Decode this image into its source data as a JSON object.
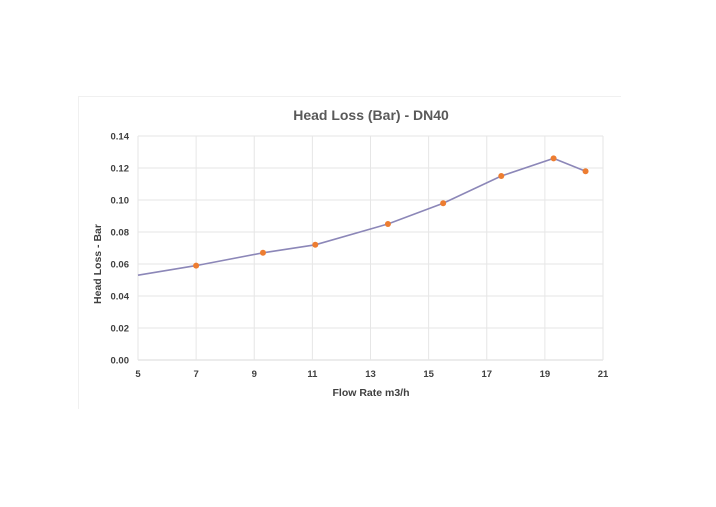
{
  "chart_data": {
    "type": "line",
    "title": "Head Loss  (Bar) - DN40",
    "xlabel": "Flow Rate m3/h",
    "ylabel": "Head Loss - Bar",
    "xlim": [
      5,
      21
    ],
    "ylim": [
      0,
      0.14
    ],
    "x_ticks": [
      5,
      7,
      9,
      11,
      13,
      15,
      17,
      19,
      21
    ],
    "y_ticks": [
      "0.00",
      "0.02",
      "0.04",
      "0.06",
      "0.08",
      "0.10",
      "0.12",
      "0.14"
    ],
    "grid": "vertical and horizontal",
    "legend": "none",
    "line_start": {
      "x": 5,
      "y": 0.053
    },
    "series": [
      {
        "x": [
          7,
          9.3,
          11.1,
          13.6,
          15.5,
          17.5,
          19.3,
          20.4
        ],
        "y": [
          0.059,
          0.067,
          0.072,
          0.085,
          0.098,
          0.115,
          0.126,
          0.118
        ],
        "line_color": "#8c87b8",
        "marker_color": "#ed7d31"
      }
    ]
  }
}
